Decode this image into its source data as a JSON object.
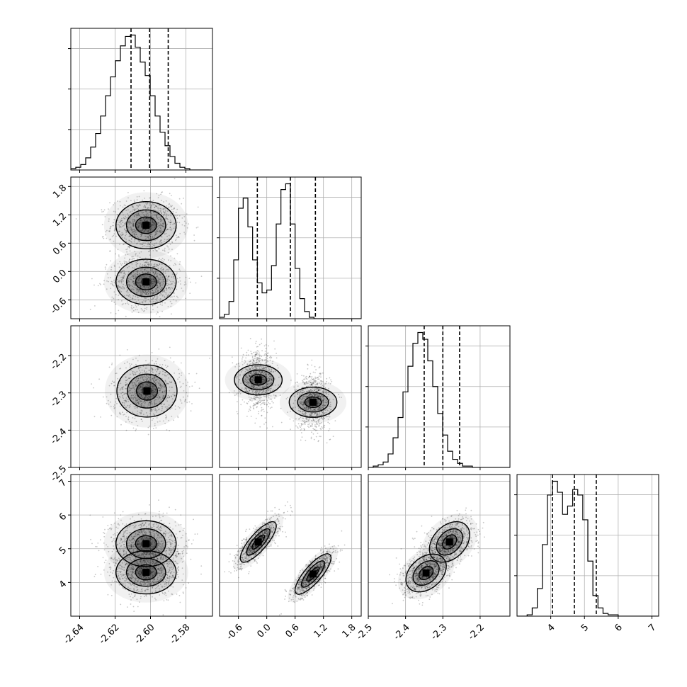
{
  "chart_data": {
    "type": "corner",
    "parameters": [
      {
        "range": [
          -2.645,
          -2.565
        ],
        "ticks": [
          "-2.64",
          "-2.62",
          "-2.60",
          "-2.58"
        ],
        "tick_values": [
          -2.64,
          -2.62,
          -2.6,
          -2.58
        ],
        "quantiles": [
          -2.611,
          -2.6005,
          -2.59
        ],
        "histogram": {
          "start": -2.645,
          "width": 0.0028,
          "counts": [
            1,
            2,
            4,
            9,
            17,
            27,
            40,
            55,
            69,
            81,
            92,
            99,
            100,
            91,
            80,
            70,
            55,
            40,
            28,
            18,
            10,
            5,
            2,
            1,
            0,
            0,
            0,
            0
          ]
        }
      },
      {
        "range": [
          -1.0,
          2.0
        ],
        "ticks": [
          "-0.6",
          "0.0",
          "0.6",
          "1.2",
          "1.8"
        ],
        "tick_values": [
          -0.6,
          0.0,
          0.6,
          1.2,
          1.8
        ],
        "quantiles": [
          -0.2,
          0.5,
          1.03
        ],
        "histogram": {
          "start": -1.0,
          "width": 0.1,
          "counts": [
            1,
            3,
            12,
            41,
            77,
            84,
            64,
            41,
            25,
            18,
            20,
            37,
            66,
            90,
            94,
            66,
            35,
            14,
            5,
            1,
            0,
            0,
            0,
            0,
            0,
            0,
            0,
            0,
            0,
            0
          ]
        }
      },
      {
        "range": [
          -2.5,
          -2.12
        ],
        "ticks": [
          "-2.5",
          "-2.4",
          "-2.3",
          "-2.2"
        ],
        "tick_values": [
          -2.5,
          -2.4,
          -2.3,
          -2.2
        ],
        "quantiles": [
          -2.35,
          -2.3,
          -2.255
        ],
        "histogram": {
          "start": -2.5,
          "width": 0.0133,
          "counts": [
            0,
            1,
            2,
            4,
            10,
            22,
            37,
            56,
            75,
            92,
            100,
            95,
            79,
            60,
            40,
            24,
            12,
            6,
            3,
            1,
            1,
            0,
            0,
            0,
            0,
            0,
            0,
            0,
            0
          ]
        }
      },
      {
        "range": [
          3.0,
          7.2
        ],
        "ticks": [
          "4",
          "5",
          "6",
          "7"
        ],
        "tick_values": [
          4,
          5,
          6,
          7
        ],
        "quantiles": [
          4.05,
          4.7,
          5.35
        ],
        "histogram": {
          "start": 3.0,
          "width": 0.15,
          "counts": [
            0,
            0,
            1,
            6,
            20,
            52,
            88,
            98,
            90,
            74,
            80,
            92,
            88,
            70,
            40,
            15,
            6,
            2,
            1,
            1,
            0,
            0,
            0,
            0,
            0,
            0,
            0,
            0
          ]
        }
      }
    ],
    "pairs": [
      {
        "row": 1,
        "col": 0,
        "modes": [
          [
            -2.6025,
            0.98,
            0.0085,
            0.25,
            0
          ],
          [
            -2.6025,
            -0.22,
            0.0085,
            0.24,
            0
          ]
        ]
      },
      {
        "row": 2,
        "col": 0,
        "modes": [
          [
            -2.602,
            -2.295,
            0.0085,
            0.035,
            0
          ]
        ]
      },
      {
        "row": 2,
        "col": 1,
        "modes": [
          [
            -0.18,
            -2.265,
            0.16,
            0.032,
            0
          ],
          [
            0.98,
            -2.325,
            0.16,
            0.032,
            0
          ]
        ]
      },
      {
        "row": 3,
        "col": 0,
        "modes": [
          [
            -2.6025,
            5.15,
            0.0085,
            0.34,
            0
          ],
          [
            -2.6025,
            4.3,
            0.0085,
            0.32,
            0
          ]
        ]
      },
      {
        "row": 3,
        "col": 1,
        "modes": [
          [
            -0.18,
            5.2,
            0.19,
            0.3,
            0.8
          ],
          [
            0.98,
            4.25,
            0.19,
            0.3,
            0.8
          ]
        ]
      },
      {
        "row": 3,
        "col": 2,
        "modes": [
          [
            -2.345,
            4.28,
            0.027,
            0.28,
            0.35
          ],
          [
            -2.282,
            5.2,
            0.027,
            0.3,
            0.35
          ]
        ]
      }
    ],
    "grid": true,
    "colors": {
      "line": "#000000",
      "grid": "#b0b0b0",
      "density_dark": "#000000",
      "background": "#ffffff"
    }
  }
}
